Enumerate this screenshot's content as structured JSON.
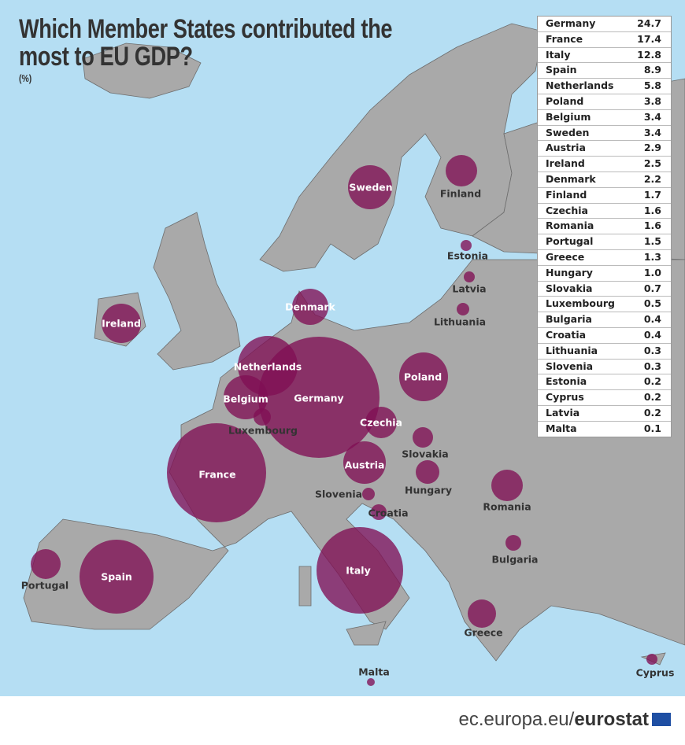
{
  "title": "Which Member States contributed the most to EU GDP?",
  "unit": "(%)",
  "colors": {
    "sea": "#b5def3",
    "land": "#a9a9a9",
    "bubble": "#801055",
    "text": "#333333"
  },
  "countries": [
    {
      "name": "Germany",
      "value": "24.7"
    },
    {
      "name": "France",
      "value": "17.4"
    },
    {
      "name": "Italy",
      "value": "12.8"
    },
    {
      "name": "Spain",
      "value": "8.9"
    },
    {
      "name": "Netherlands",
      "value": "5.8"
    },
    {
      "name": "Poland",
      "value": "3.8"
    },
    {
      "name": "Belgium",
      "value": "3.4"
    },
    {
      "name": "Sweden",
      "value": "3.4"
    },
    {
      "name": "Austria",
      "value": "2.9"
    },
    {
      "name": "Ireland",
      "value": "2.5"
    },
    {
      "name": "Denmark",
      "value": "2.2"
    },
    {
      "name": "Finland",
      "value": "1.7"
    },
    {
      "name": "Czechia",
      "value": "1.6"
    },
    {
      "name": "Romania",
      "value": "1.6"
    },
    {
      "name": "Portugal",
      "value": "1.5"
    },
    {
      "name": "Greece",
      "value": "1.3"
    },
    {
      "name": "Hungary",
      "value": "1.0"
    },
    {
      "name": "Slovakia",
      "value": "0.7"
    },
    {
      "name": "Luxembourg",
      "value": "0.5"
    },
    {
      "name": "Bulgaria",
      "value": "0.4"
    },
    {
      "name": "Croatia",
      "value": "0.4"
    },
    {
      "name": "Lithuania",
      "value": "0.3"
    },
    {
      "name": "Slovenia",
      "value": "0.3"
    },
    {
      "name": "Estonia",
      "value": "0.2"
    },
    {
      "name": "Cyprus",
      "value": "0.2"
    },
    {
      "name": "Latvia",
      "value": "0.2"
    },
    {
      "name": "Malta",
      "value": "0.1"
    }
  ],
  "footer": {
    "url_prefix": "ec.europa.eu/",
    "url_brand": "eurostat",
    "flag_icon": "eu-flag-icon"
  }
}
